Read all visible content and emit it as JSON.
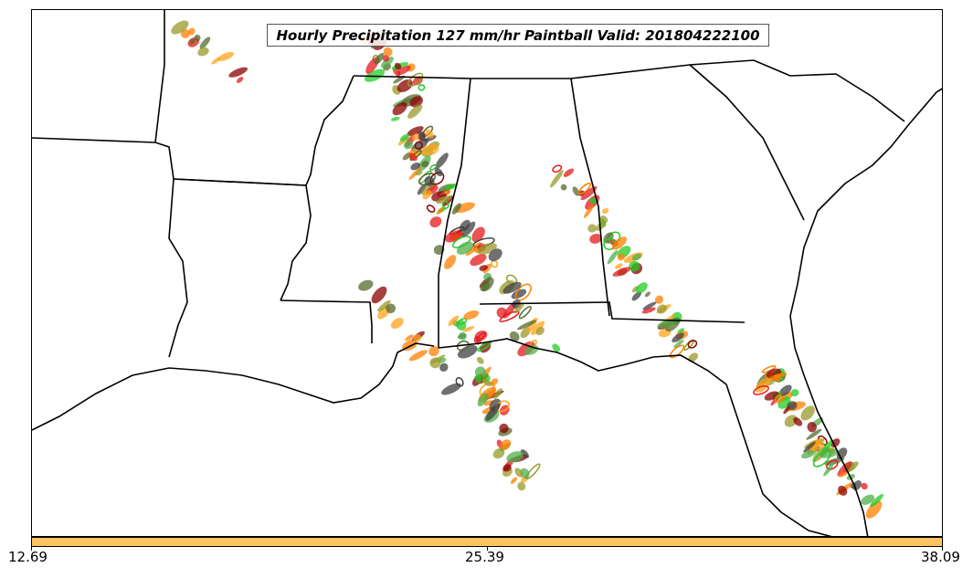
{
  "title": "Hourly Precipitation 127 mm/hr Paintball Valid: 201804222100",
  "colorbar": {
    "color": "#fec45f",
    "ticks": [
      "12.69",
      "25.39",
      "38.09"
    ]
  },
  "colors": {
    "ensemble": [
      "#e41a1c",
      "#ff7f00",
      "#ffa31a",
      "#8b0000",
      "#4daf4a",
      "#22cc22",
      "#556b2f",
      "#9a9a2a",
      "#404040"
    ]
  }
}
